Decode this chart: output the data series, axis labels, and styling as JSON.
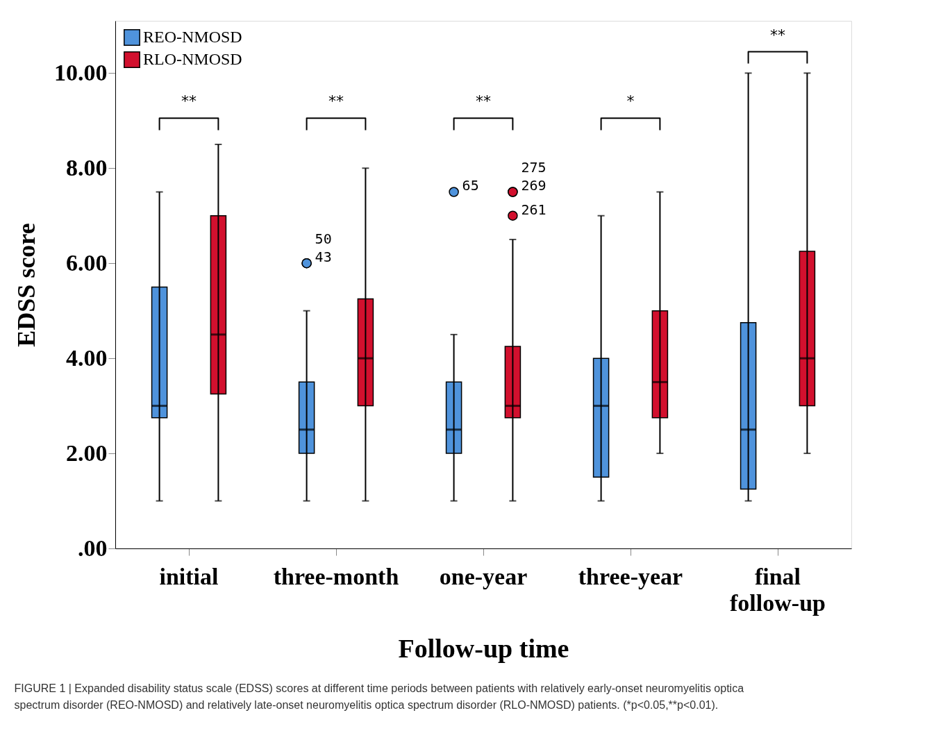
{
  "chart_data": {
    "type": "box",
    "xlabel": "Follow-up time",
    "ylabel": "EDSS score",
    "categories": [
      "initial",
      "three-month",
      "one-year",
      "three-year",
      "final follow-up"
    ],
    "ylim": [
      0,
      11.1
    ],
    "yticks": [
      {
        "value": 0,
        "label": ".00"
      },
      {
        "value": 2,
        "label": "2.00"
      },
      {
        "value": 4,
        "label": "4.00"
      },
      {
        "value": 6,
        "label": "6.00"
      },
      {
        "value": 8,
        "label": "8.00"
      },
      {
        "value": 10,
        "label": "10.00"
      }
    ],
    "grid": false,
    "legend": "top left",
    "series": [
      {
        "name": "REO-NMOSD",
        "color": "#4f93dc",
        "boxes": [
          {
            "low": 1,
            "q1": 2.75,
            "median": 3,
            "q3": 5.5,
            "high": 7.5
          },
          {
            "low": 1,
            "q1": 2,
            "median": 2.5,
            "q3": 3.5,
            "high": 5,
            "outliers": [
              6,
              6
            ]
          },
          {
            "low": 1,
            "q1": 2,
            "median": 2.5,
            "q3": 3.5,
            "high": 4.5,
            "outliers": [
              7.5
            ]
          },
          {
            "low": 1,
            "q1": 1.5,
            "median": 3,
            "q3": 4,
            "high": 7
          },
          {
            "low": 1,
            "q1": 1.25,
            "median": 2.5,
            "q3": 4.75,
            "high": 10
          }
        ]
      },
      {
        "name": "RLO-NMOSD",
        "color": "#d2102e",
        "boxes": [
          {
            "low": 1,
            "q1": 3.25,
            "median": 4.5,
            "q3": 7,
            "high": 8.5
          },
          {
            "low": 1,
            "q1": 3,
            "median": 4,
            "q3": 5.25,
            "high": 8
          },
          {
            "low": 1,
            "q1": 2.75,
            "median": 3,
            "q3": 4.25,
            "high": 6.5,
            "outliers": [
              7.5,
              7.5,
              7
            ]
          },
          {
            "low": 2,
            "q1": 2.75,
            "median": 3.5,
            "q3": 5,
            "high": 7.5
          },
          {
            "low": 2,
            "q1": 3,
            "median": 4,
            "q3": 6.25,
            "high": 10
          }
        ]
      }
    ],
    "annotations": [
      "**",
      "**",
      "**",
      "*",
      "**",
      "43",
      "50",
      "65",
      "269",
      "275",
      "261",
      "FIGURE 1 | Expanded disability status scale (EDSS) scores at different time periods between patients with relatively early-onset neuromyelitis optica spectrum disorder (REO-NMOSD) and relatively late-onset neuromyelitis optica spectrum disorder (RLO-NMOSD) patients. (*p<0.05,**p<0.01)."
    ]
  }
}
